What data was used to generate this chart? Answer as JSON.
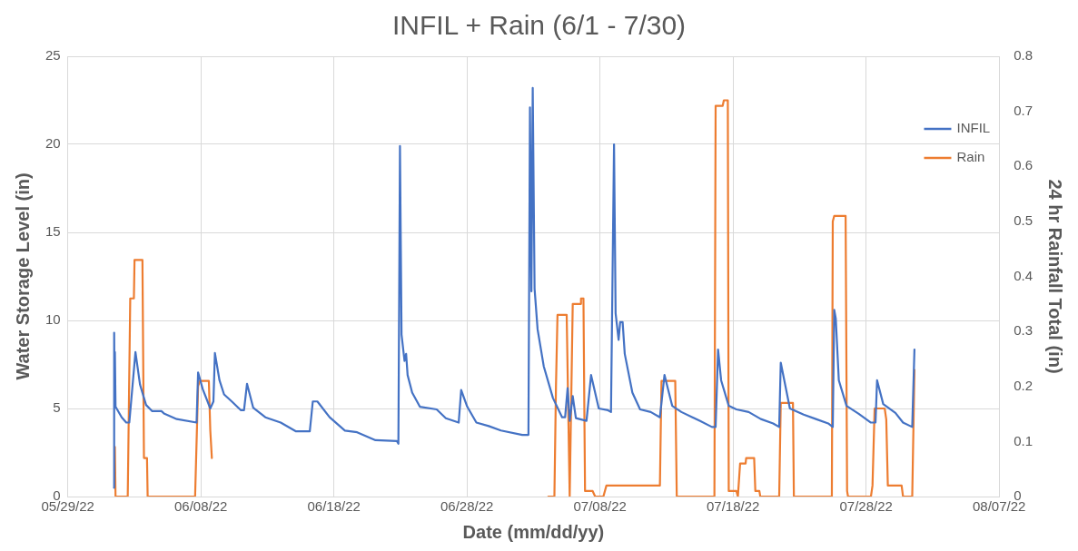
{
  "chart_data": {
    "type": "line",
    "title": "INFIL + Rain (6/1 - 7/30)",
    "xlabel": "Date (mm/dd/yy)",
    "ylabel": "Water Storage Level (in)",
    "y2label": "24 hr Rainfall Total (in)",
    "xlim": [
      "--05-29",
      "--08-07"
    ],
    "xticks": [
      {
        "value": "--05-29",
        "label": "05/29/22"
      },
      {
        "value": "--06-08",
        "label": "06/08/22"
      },
      {
        "value": "--06-18",
        "label": "06/18/22"
      },
      {
        "value": "--06-28",
        "label": "06/28/22"
      },
      {
        "value": "--07-08",
        "label": "07/08/22"
      },
      {
        "value": "--07-18",
        "label": "07/18/22"
      },
      {
        "value": "--07-28",
        "label": "07/28/22"
      },
      {
        "value": "--08-07",
        "label": "08/07/22"
      }
    ],
    "ylim": [
      0,
      25
    ],
    "yticks": [
      0,
      5,
      10,
      15,
      20,
      25
    ],
    "y2lim": [
      0,
      0.8
    ],
    "y2ticks": [
      0,
      0.1,
      0.2,
      0.3,
      0.4,
      0.5,
      0.6,
      0.7,
      0.8
    ],
    "grid": true,
    "legend": "top right",
    "marker": "none",
    "line_style": "solid",
    "series": [
      {
        "name": "INFIL",
        "color": "#4472c4",
        "x": [
          "--06-01T11:15",
          "--06-01T11:35",
          "--06-01T12:25",
          "--06-01T12:55",
          "--06-01T14:05",
          "--06-02T01:10",
          "--06-02T09:25",
          "--06-02T14:55",
          "--06-03T02:00",
          "--06-03T10:15",
          "--06-03T21:10",
          "--06-04T08:15",
          "--06-05T00:50",
          "--06-05T06:15",
          "--06-06T04:30",
          "--06-07T16:15",
          "--06-07T19:00",
          "--06-08T03:20",
          "--06-08T17:00",
          "--06-08T22:40",
          "--06-09T01:20",
          "--06-09T09:35",
          "--06-09T17:50",
          "--06-10T07:45",
          "--06-11T00:20",
          "--06-11T05:50",
          "--06-11T11:15",
          "--06-11T22:20",
          "--06-12T20:20",
          "--06-14T00:00",
          "--06-15T03:40",
          "--06-16T04:30",
          "--06-16T09:55",
          "--06-16T18:10",
          "--06-17T16:15",
          "--06-18T19:50",
          "--06-19T17:50",
          "--06-21T03:00",
          "--06-22T17:40",
          "--06-22T20:20",
          "--06-22T23:10",
          "--06-23T02:00",
          "--06-23T07:25",
          "--06-23T10:15",
          "--06-23T12:55",
          "--06-23T21:10",
          "--06-24T11:05",
          "--06-25T17:20",
          "--06-26T09:55",
          "--06-27T09:05",
          "--06-27T13:35",
          "--06-28T00:30",
          "--06-28T17:00",
          "--06-29T15:15",
          "--06-30T13:15",
          "--07-02T03:50",
          "--07-02T14:55",
          "--07-02T17:40",
          "--07-02T20:20",
          "--07-02T22:40",
          "--07-03T02:00",
          "--07-03T07:25",
          "--07-03T18:30",
          "--07-04T11:05",
          "--07-05T03:40",
          "--07-05T09:05",
          "--07-05T13:35",
          "--07-05T17:20",
          "--07-05T22:50",
          "--07-06T04:30",
          "--07-06T23:40",
          "--07-07T07:55",
          "--07-07T21:50",
          "--07-08T14:25",
          "--07-08T19:50",
          "--07-09T01:20",
          "--07-09T04:10",
          "--07-09T09:35",
          "--07-09T12:25",
          "--07-09T16:50",
          "--07-09T20:40",
          "--07-10T10:25",
          "--07-11T00:20",
          "--07-11T19:30",
          "--07-12T12:05",
          "--07-12T20:20",
          "--07-13T10:15",
          "--07-14T02:50",
          "--07-15T11:55",
          "--07-16T09:55",
          "--07-16T16:35",
          "--07-16T21:00",
          "--07-17T02:30",
          "--07-17T16:15",
          "--07-18T06:05",
          "--07-19T04:10",
          "--07-20T02:10",
          "--07-21T00:20",
          "--07-21T11:15",
          "--07-21T14:05",
          "--07-22T06:35",
          "--07-23T07:25",
          "--07-24T05:30",
          "--07-25T03:40",
          "--07-25T11:55",
          "--07-25T14:35",
          "--07-25T17:20",
          "--07-25T22:50",
          "--07-26T12:45",
          "--07-27T10:45",
          "--07-28T08:45",
          "--07-28T17:00",
          "--07-28T19:50",
          "--07-29T06:55",
          "--07-30T04:55",
          "--07-30T18:40",
          "--07-31T11:15",
          "--07-31T15:15"
        ],
        "values": [
          0.5,
          9.3,
          5.4,
          8.2,
          5.1,
          4.5,
          4.2,
          4.2,
          8.2,
          6.35,
          5.2,
          4.85,
          4.85,
          4.7,
          4.4,
          4.2,
          7.05,
          6.1,
          5.0,
          5.4,
          8.15,
          6.6,
          5.8,
          5.4,
          4.9,
          4.9,
          6.4,
          5.05,
          4.5,
          4.2,
          3.7,
          3.7,
          5.4,
          5.4,
          4.5,
          3.74,
          3.65,
          3.2,
          3.15,
          3.0,
          19.9,
          9.2,
          7.7,
          8.1,
          6.9,
          5.9,
          5.1,
          4.95,
          4.45,
          4.2,
          6.05,
          5.1,
          4.2,
          4.0,
          3.75,
          3.5,
          3.5,
          22.1,
          11.65,
          23.2,
          11.8,
          9.5,
          7.4,
          5.6,
          4.5,
          4.5,
          6.15,
          4.3,
          5.7,
          4.45,
          4.3,
          6.9,
          5.0,
          4.9,
          4.8,
          20.0,
          10.4,
          8.9,
          9.9,
          9.9,
          8.1,
          5.9,
          4.95,
          4.8,
          4.5,
          6.9,
          5.15,
          4.8,
          4.3,
          3.95,
          3.95,
          8.35,
          6.6,
          5.15,
          4.95,
          4.8,
          4.4,
          4.15,
          3.95,
          7.6,
          5.0,
          4.65,
          4.4,
          4.15,
          3.95,
          10.6,
          10.1,
          6.6,
          5.15,
          4.7,
          4.2,
          4.2,
          6.6,
          5.25,
          4.75,
          4.2,
          3.95,
          8.35
        ]
      },
      {
        "name": "Rain",
        "color": "#ed7d31",
        "axis": "y2",
        "x": [
          "--06-01T12:55",
          "--06-01T14:05",
          "--06-02T12:05",
          "--06-02T16:35",
          "--06-02T23:10",
          "--06-03T00:20",
          "--06-03T14:35",
          "--06-03T17:20",
          "--06-03T22:50",
          "--06-04T00:00",
          "--06-07T13:35",
          "--06-07T19:00",
          "--06-07T21:50",
          "--06-08T14:25",
          "--06-08T17:00",
          "--06-08T19:50",
          "--06-20T00:00",
          "--07-04T02:50",
          "--07-04T13:45",
          "--07-04T16:35",
          "--07-04T19:20",
          "--07-05T11:55",
          "--07-05T17:20",
          "--07-05T22:50",
          "--07-06T12:45",
          "--07-06T13:45",
          "--07-06T18:10",
          "--07-06T21:00",
          "--07-07T10:45",
          "--07-07T15:15",
          "--07-08T06:05",
          "--07-08T11:35",
          "--07-12T12:05",
          "--07-12T14:55",
          "--07-13T15:45",
          "--07-13T18:30",
          "--07-16T14:25",
          "--07-16T16:35",
          "--07-17T05:20",
          "--07-17T07:25",
          "--07-17T14:35",
          "--07-17T16:15",
          "--07-18T06:05",
          "--07-18T08:45",
          "--07-18T12:45",
          "--07-18T22:40",
          "--07-18T23:40",
          "--07-19T14:05",
          "--07-19T16:15",
          "--07-19T23:30",
          "--07-20T01:10",
          "--07-21T11:15",
          "--07-21T14:05",
          "--07-22T12:05",
          "--07-22T13:45",
          "--07-25T10:15",
          "--07-25T11:55",
          "--07-25T14:35",
          "--07-26T11:05",
          "--07-26T13:45",
          "--07-26T15:25",
          "--07-28T08:45",
          "--07-28T11:35",
          "--07-28T15:25",
          "--07-29T09:35",
          "--07-29T12:25",
          "--07-29T15:15",
          "--07-30T16:05",
          "--07-30T18:40",
          "--07-31T11:15",
          "--07-31T15:15"
        ],
        "values": [
          0.09,
          0,
          0,
          0.36,
          0.36,
          0.43,
          0.43,
          0.07,
          0.07,
          0,
          0,
          0.2,
          0.21,
          0.21,
          0.12,
          0.07,
          null,
          0,
          0,
          0.2,
          0.33,
          0.33,
          0,
          0.35,
          0.35,
          0.36,
          0.36,
          0.01,
          0.01,
          0,
          0,
          0.02,
          0.02,
          0.21,
          0.21,
          0,
          0,
          0.71,
          0.71,
          0.72,
          0.72,
          0.01,
          0.01,
          0,
          0.06,
          0.06,
          0.07,
          0.07,
          0.01,
          0.01,
          0,
          0,
          0.17,
          0.17,
          0,
          0,
          0.5,
          0.51,
          0.51,
          0.01,
          0,
          0,
          0.02,
          0.16,
          0.16,
          0.14,
          0.02,
          0.02,
          0,
          0,
          0.23
        ]
      }
    ]
  }
}
